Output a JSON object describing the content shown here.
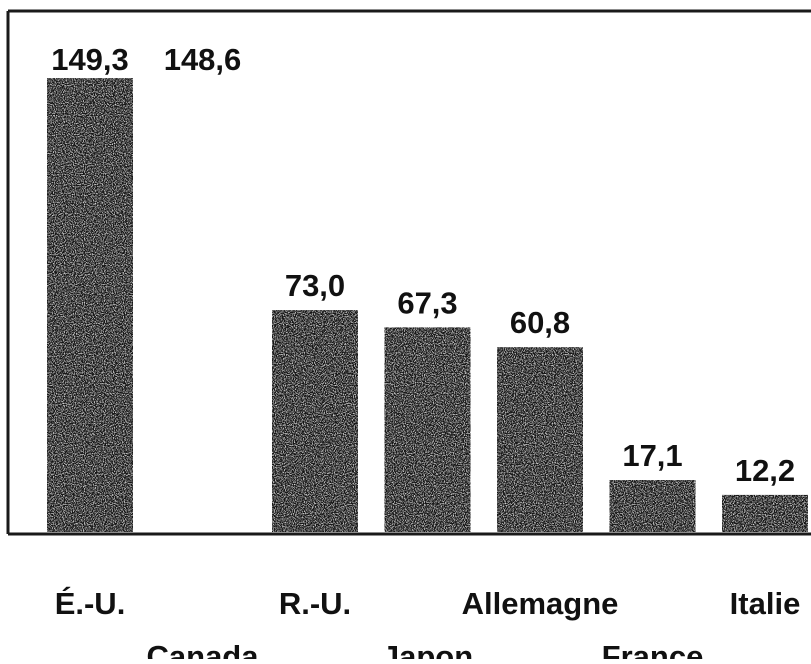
{
  "chart_data": {
    "type": "bar",
    "categories": [
      "É.-U.",
      "Canada",
      "R.-U.",
      "Japon",
      "Allemagne",
      "France",
      "Italie"
    ],
    "values": [
      149.3,
      148.6,
      73.0,
      67.3,
      60.8,
      17.1,
      12.2
    ],
    "value_labels": [
      "149,3",
      "148,6",
      "73,0",
      "67,3",
      "60,8",
      "17,1",
      "12,2"
    ],
    "title": "",
    "xlabel": "",
    "ylabel": "",
    "ylim": [
      0,
      160
    ],
    "grid": false,
    "legend": "none",
    "colors": {
      "bar": "#151515",
      "frame": "#1a1a1a",
      "text": "#111111"
    }
  }
}
